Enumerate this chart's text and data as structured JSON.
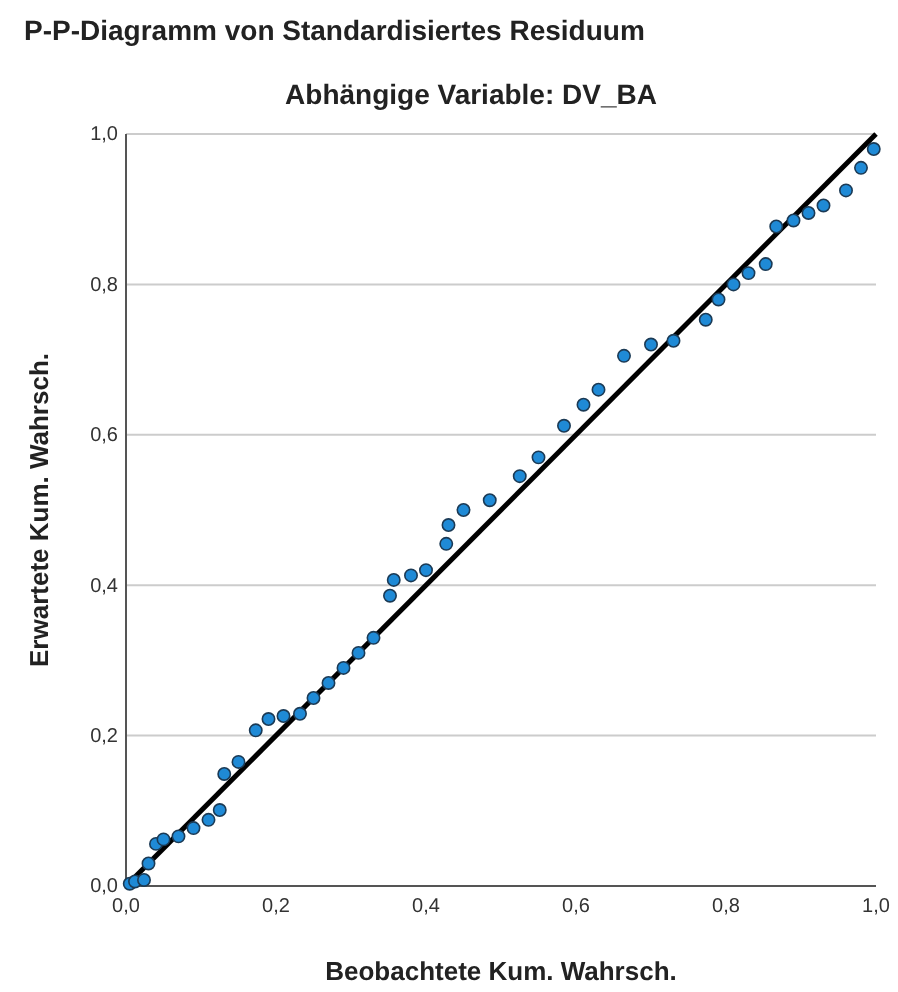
{
  "chart_data": {
    "type": "scatter",
    "title": "P-P-Diagramm von Standardisiertes Residuum",
    "subtitle": "Abhängige Variable: DV_BA",
    "xlabel": "Beobachtete Kum. Wahrsch.",
    "ylabel": "Erwartete Kum. Wahrsch.",
    "xlim": [
      0,
      1
    ],
    "ylim": [
      0,
      1
    ],
    "xticks": [
      {
        "value": 0,
        "label": "0,0"
      },
      {
        "value": 0.2,
        "label": "0,2"
      },
      {
        "value": 0.4,
        "label": "0,4"
      },
      {
        "value": 0.6,
        "label": "0,6"
      },
      {
        "value": 0.8,
        "label": "0,8"
      },
      {
        "value": 1,
        "label": "1,0"
      }
    ],
    "yticks": [
      {
        "value": 0,
        "label": "0,0"
      },
      {
        "value": 0.2,
        "label": "0,2"
      },
      {
        "value": 0.4,
        "label": "0,4"
      },
      {
        "value": 0.6,
        "label": "0,6"
      },
      {
        "value": 0.8,
        "label": "0,8"
      },
      {
        "value": 1,
        "label": "1,0"
      }
    ],
    "grid": "y",
    "marker": "circle",
    "series": [
      {
        "color": "#1f8ad6",
        "x": [
          0.005,
          0.012,
          0.024,
          0.03,
          0.04,
          0.05,
          0.07,
          0.09,
          0.11,
          0.125,
          0.131,
          0.15,
          0.173,
          0.19,
          0.21,
          0.232,
          0.25,
          0.27,
          0.29,
          0.31,
          0.33,
          0.352,
          0.357,
          0.38,
          0.4,
          0.427,
          0.43,
          0.45,
          0.485,
          0.525,
          0.55,
          0.584,
          0.61,
          0.63,
          0.664,
          0.7,
          0.73,
          0.773,
          0.79,
          0.81,
          0.83,
          0.853,
          0.867,
          0.89,
          0.91,
          0.93,
          0.96,
          0.98,
          0.997
        ],
        "values": [
          0.003,
          0.006,
          0.008,
          0.03,
          0.056,
          0.062,
          0.066,
          0.077,
          0.088,
          0.101,
          0.149,
          0.165,
          0.207,
          0.222,
          0.226,
          0.229,
          0.25,
          0.27,
          0.29,
          0.31,
          0.33,
          0.386,
          0.407,
          0.413,
          0.42,
          0.455,
          0.48,
          0.5,
          0.513,
          0.545,
          0.57,
          0.612,
          0.64,
          0.66,
          0.705,
          0.72,
          0.725,
          0.753,
          0.78,
          0.8,
          0.815,
          0.827,
          0.877,
          0.885,
          0.895,
          0.905,
          0.925,
          0.955,
          0.98
        ]
      },
      {
        "type": "line",
        "marker": "none",
        "color": "#000000",
        "x": [
          0,
          1
        ],
        "values": [
          0,
          1
        ]
      }
    ]
  }
}
